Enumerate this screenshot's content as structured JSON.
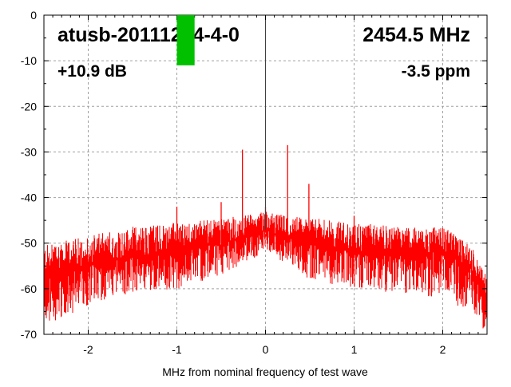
{
  "chart_data": {
    "type": "line",
    "title_left": "atusb-20111214-4-0",
    "title_right": "2454.5 MHz",
    "subtitle_left": "+10.9 dB",
    "subtitle_right": "-3.5 ppm",
    "xlabel": "MHz from nominal frequency of test wave",
    "ylabel": "",
    "xlim": [
      -2.5,
      2.5
    ],
    "ylim": [
      -70,
      0
    ],
    "x_ticks": [
      {
        "value": -2,
        "label": "-2"
      },
      {
        "value": -1,
        "label": "-1"
      },
      {
        "value": 0,
        "label": "0"
      },
      {
        "value": 1,
        "label": "1"
      },
      {
        "value": 2,
        "label": "2"
      }
    ],
    "y_ticks": [
      {
        "value": 0,
        "label": "0"
      },
      {
        "value": -10,
        "label": "-10"
      },
      {
        "value": -20,
        "label": "-20"
      },
      {
        "value": -30,
        "label": "-30"
      },
      {
        "value": -40,
        "label": "-40"
      },
      {
        "value": -50,
        "label": "-50"
      },
      {
        "value": -60,
        "label": "-60"
      },
      {
        "value": -70,
        "label": "-70"
      }
    ],
    "grid": true,
    "level_bar": {
      "x_range": [
        -1.0,
        -0.8
      ],
      "top": 0,
      "bottom": -11,
      "color": "#00c000"
    },
    "carrier_line": {
      "x": 0,
      "color": "#404040"
    },
    "spectrum_envelope": {
      "x": [
        -2.5,
        -2.0,
        -1.5,
        -1.0,
        -0.5,
        -0.1,
        0.0,
        0.1,
        0.5,
        1.0,
        1.5,
        2.0,
        2.3,
        2.5
      ],
      "upper": [
        -51,
        -49,
        -47,
        -46,
        -45,
        -44,
        -43,
        -44,
        -45,
        -46,
        -47,
        -47,
        -50,
        -58
      ],
      "mean": [
        -57,
        -55,
        -53,
        -52,
        -50,
        -48,
        -47,
        -48,
        -50,
        -52,
        -52,
        -52,
        -55,
        -63
      ],
      "lower": [
        -68,
        -64,
        -61,
        -60,
        -57,
        -53,
        -51,
        -53,
        -58,
        -60,
        -61,
        -62,
        -65,
        -70
      ]
    },
    "spikes": [
      {
        "x": -0.26,
        "y": -29.5
      },
      {
        "x": 0.25,
        "y": -28.5
      },
      {
        "x": -0.5,
        "y": -41
      },
      {
        "x": 0.49,
        "y": -37
      },
      {
        "x": -1.0,
        "y": -42
      },
      {
        "x": 1.0,
        "y": -44
      },
      {
        "x": 0.0,
        "y": -42
      }
    ],
    "series_color": "#ff0000"
  }
}
